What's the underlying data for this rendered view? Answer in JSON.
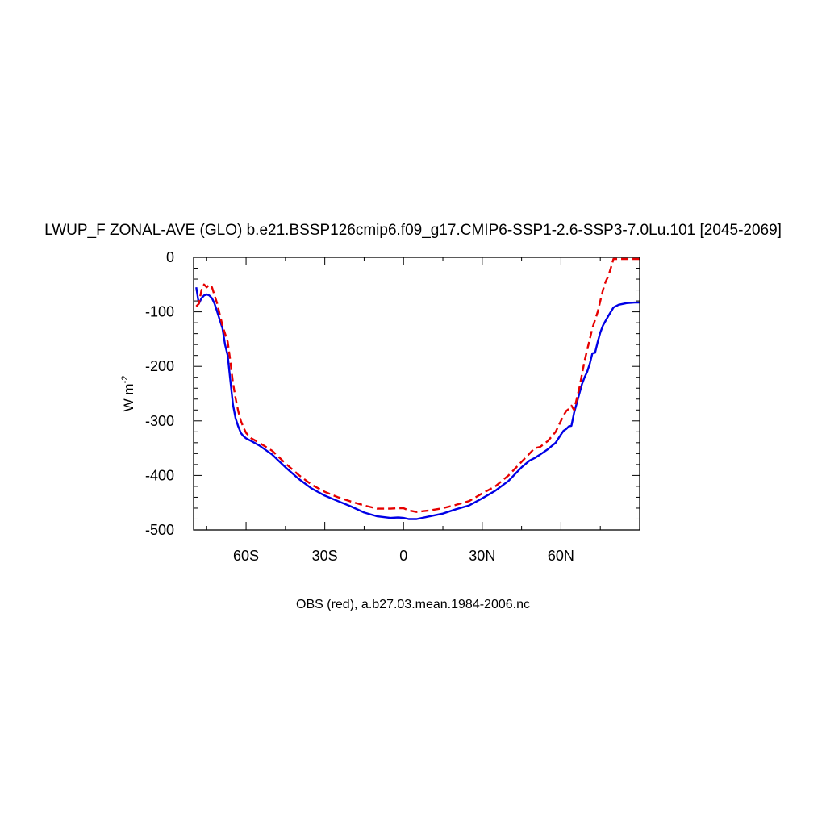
{
  "chart_data": {
    "type": "line",
    "title": "LWUP_F ZONAL-AVE (GLO) b.e21.BSSP126cmip6.f09_g17.CMIP6-SSP1-2.6-SSP3-7.0Lu.101 [2045-2069]",
    "ylabel_main": "W m",
    "ylabel_sup": "-2",
    "footnote": "OBS (red), a.b27.03.mean.1984-2006.nc",
    "xlim": [
      -80,
      90
    ],
    "ylim": [
      -500,
      0
    ],
    "x_ticks": [
      {
        "value": -60,
        "label": "60S"
      },
      {
        "value": -30,
        "label": "30S"
      },
      {
        "value": 0,
        "label": "0"
      },
      {
        "value": 30,
        "label": "30N"
      },
      {
        "value": 60,
        "label": "60N"
      }
    ],
    "y_ticks": [
      {
        "value": 0,
        "label": "0"
      },
      {
        "value": -100,
        "label": "-100"
      },
      {
        "value": -200,
        "label": "-200"
      },
      {
        "value": -300,
        "label": "-300"
      },
      {
        "value": -400,
        "label": "-400"
      },
      {
        "value": -500,
        "label": "-500"
      }
    ],
    "series": [
      {
        "color": "#0000e6",
        "dash": "none",
        "x": [
          -79,
          -78,
          -77,
          -76,
          -75,
          -74,
          -73,
          -72,
          -71,
          -70,
          -69,
          -68,
          -67,
          -66,
          -65,
          -64,
          -63,
          -62,
          -61,
          -60,
          -58,
          -55,
          -50,
          -45,
          -40,
          -35,
          -30,
          -25,
          -20,
          -15,
          -10,
          -5,
          -2,
          0,
          2,
          5,
          10,
          15,
          20,
          25,
          30,
          35,
          40,
          45,
          48,
          50,
          52,
          55,
          58,
          60,
          61,
          62,
          63,
          64,
          65,
          66,
          67,
          68,
          69,
          70,
          71,
          72,
          73,
          74,
          75,
          76,
          78,
          80,
          82,
          85,
          88,
          90
        ],
        "y": [
          -55,
          -85,
          -75,
          -70,
          -68,
          -70,
          -75,
          -85,
          -100,
          -115,
          -130,
          -160,
          -180,
          -225,
          -270,
          -295,
          -310,
          -322,
          -328,
          -332,
          -337,
          -345,
          -362,
          -385,
          -406,
          -424,
          -437,
          -447,
          -457,
          -468,
          -475,
          -478,
          -477,
          -478,
          -480,
          -480,
          -475,
          -470,
          -462,
          -455,
          -442,
          -428,
          -410,
          -385,
          -373,
          -368,
          -362,
          -352,
          -340,
          -325,
          -318,
          -315,
          -310,
          -309,
          -285,
          -268,
          -250,
          -233,
          -220,
          -210,
          -195,
          -176,
          -175,
          -155,
          -138,
          -125,
          -108,
          -92,
          -87,
          -84,
          -83,
          -83
        ]
      },
      {
        "color": "#e60000",
        "dash": "9,5",
        "x": [
          -79,
          -78,
          -77,
          -76,
          -75,
          -74,
          -73,
          -72,
          -71,
          -70,
          -69,
          -68,
          -67,
          -66,
          -65,
          -64,
          -63,
          -62,
          -61,
          -60,
          -58,
          -55,
          -50,
          -45,
          -40,
          -35,
          -30,
          -25,
          -20,
          -15,
          -10,
          -5,
          -2,
          0,
          2,
          5,
          10,
          15,
          20,
          25,
          30,
          35,
          40,
          45,
          48,
          50,
          52,
          55,
          58,
          60,
          61,
          62,
          63,
          64,
          65,
          66,
          67,
          68,
          69,
          70,
          71,
          72,
          73,
          74,
          75,
          76,
          77,
          78,
          79,
          80,
          82,
          85,
          88,
          90
        ],
        "y": [
          -90,
          -85,
          -60,
          -50,
          -55,
          -50,
          -55,
          -70,
          -85,
          -105,
          -125,
          -140,
          -155,
          -190,
          -230,
          -258,
          -282,
          -300,
          -312,
          -322,
          -332,
          -340,
          -355,
          -378,
          -399,
          -417,
          -430,
          -440,
          -448,
          -455,
          -461,
          -461,
          -460,
          -460,
          -464,
          -467,
          -464,
          -460,
          -454,
          -447,
          -433,
          -420,
          -400,
          -375,
          -360,
          -350,
          -348,
          -337,
          -320,
          -300,
          -290,
          -282,
          -278,
          -272,
          -280,
          -260,
          -240,
          -215,
          -190,
          -170,
          -150,
          -130,
          -115,
          -100,
          -80,
          -60,
          -45,
          -35,
          -20,
          -3,
          -3,
          -3,
          -3,
          -3
        ]
      }
    ]
  }
}
